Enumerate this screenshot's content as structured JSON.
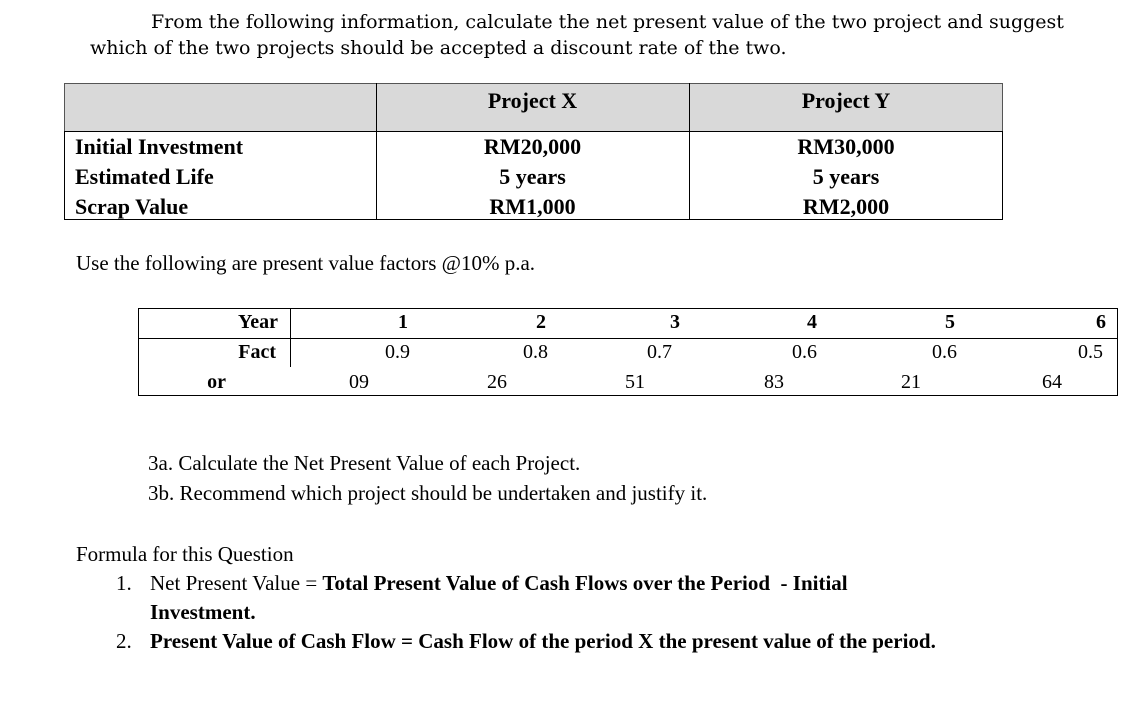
{
  "intro": {
    "line1": "From the following information, calculate the net present value of the two project and suggest",
    "line2": "which of the two projects should be accepted a discount rate of the two."
  },
  "project_table": {
    "headers": [
      "",
      "Project X",
      "Project Y"
    ],
    "rows": [
      {
        "label": "Initial Investment",
        "x": "RM20,000",
        "y": "RM30,000"
      },
      {
        "label": "Estimated Life",
        "x": "5 years",
        "y": "5 years"
      },
      {
        "label": "Scrap Value",
        "x": "RM1,000",
        "y": "RM2,000"
      }
    ]
  },
  "pv_intro": "Use the following are present value factors @10% p.a.",
  "factor_table": {
    "row_label_1": "Year",
    "row_label_2": "Fact",
    "row_label_3": "or",
    "years": [
      "1",
      "2",
      "3",
      "4",
      "5",
      "6"
    ],
    "factors_main": [
      "0.9",
      "0.8",
      "0.7",
      "0.6",
      "0.6",
      "0.5"
    ],
    "factors_digits": [
      "09",
      "26",
      "51",
      "83",
      "21",
      "64"
    ]
  },
  "questions": {
    "q3a": "3a. Calculate the Net Present Value of each Project.",
    "q3b": "3b. Recommend which project should be undertaken and justify it."
  },
  "formula": {
    "title": "Formula for this Question",
    "item1_num": "1.",
    "item1_plain": "Net Present Value = ",
    "item1_bold": "Total Present Value of Cash Flows over the Period  - Initial",
    "item1_cont": "Investment.",
    "item2_num": "2.",
    "item2_text": "Present Value of Cash Flow = Cash Flow of the period X the present value of the period."
  }
}
